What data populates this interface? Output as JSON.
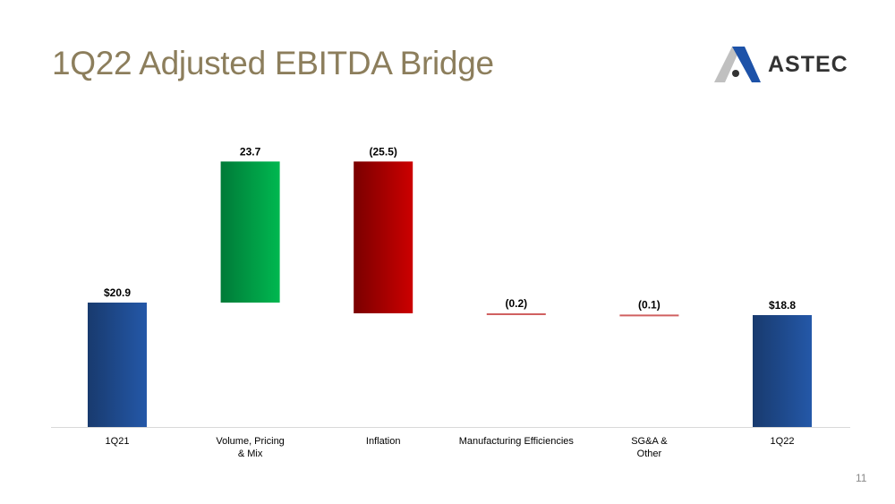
{
  "title": "1Q22 Adjusted EBITDA Bridge",
  "logo": {
    "text": "ASTEC"
  },
  "page_number": "11",
  "chart_data": {
    "type": "waterfall",
    "categories": [
      [
        "1Q21"
      ],
      [
        "Volume, Pricing",
        "& Mix"
      ],
      [
        "Inflation"
      ],
      [
        "Manufacturing Efficiencies"
      ],
      [
        "SG&A &",
        "Other"
      ],
      [
        "1Q22"
      ]
    ],
    "values": [
      20.9,
      23.7,
      -25.5,
      -0.2,
      -0.1,
      18.8
    ],
    "kinds": [
      "total",
      "delta",
      "delta",
      "delta",
      "delta",
      "total"
    ],
    "labels": [
      "$20.9",
      "23.7",
      "(25.5)",
      "(0.2)",
      "(0.1)",
      "$18.8"
    ],
    "ylim": [
      0,
      45
    ],
    "colors": {
      "total": "#1f4e96",
      "increase": "#00b050",
      "decrease": "#c00000",
      "small_decrease": "#d06060"
    }
  }
}
